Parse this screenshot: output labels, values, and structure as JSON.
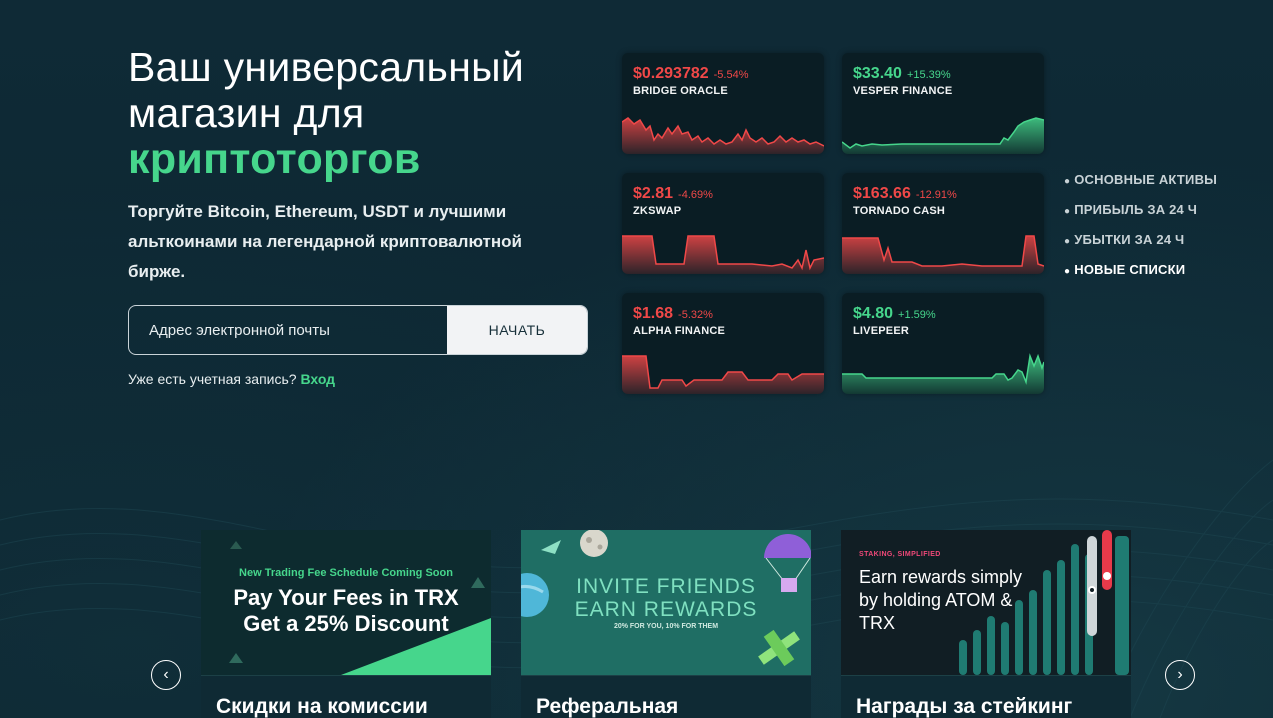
{
  "hero": {
    "title": "Ваш универсальный магазин для",
    "title_accent": "криптоторгов",
    "subtitle": "Торгуйте Bitcoin, Ethereum, USDT и лучшими альткоинами на легендарной криптовалютной бирже."
  },
  "signup": {
    "email_placeholder": "Адрес электронной почты",
    "start_label": "НАЧАТЬ",
    "login_prompt": "Уже есть учетная запись?",
    "login_link": "Вход"
  },
  "tickers": [
    {
      "price": "$0.293782",
      "change": "-5.54%",
      "name": "BRIDGE ORACLE",
      "trend": "down"
    },
    {
      "price": "$33.40",
      "change": "+15.39%",
      "name": "VESPER FINANCE",
      "trend": "up"
    },
    {
      "price": "$2.81",
      "change": "-4.69%",
      "name": "ZKSWAP",
      "trend": "down"
    },
    {
      "price": "$163.66",
      "change": "-12.91%",
      "name": "TORNADO CASH",
      "trend": "down"
    },
    {
      "price": "$1.68",
      "change": "-5.32%",
      "name": "ALPHA FINANCE",
      "trend": "down"
    },
    {
      "price": "$4.80",
      "change": "+1.59%",
      "name": "LIVEPEER",
      "trend": "up"
    }
  ],
  "filters": [
    "ОСНОВНЫЕ АКТИВЫ",
    "ПРИБЫЛЬ ЗА 24 Ч",
    "УБЫТКИ ЗА 24 Ч",
    "НОВЫЕ СПИСКИ"
  ],
  "filters_active": "НОВЫЕ СПИСКИ",
  "cards": [
    {
      "banner_sub": "New Trading Fee Schedule Coming Soon",
      "banner_line1": "Pay Your Fees in TRX",
      "banner_line2": "Get a 25% Discount",
      "caption": "Скидки на комиссии"
    },
    {
      "banner_line1": "INVITE FRIENDS",
      "banner_line2": "EARN REWARDS",
      "banner_small": "20% FOR YOU, 10% FOR THEM",
      "caption": "Реферальная"
    },
    {
      "banner_tag": "STAKING, SIMPLIFIED",
      "banner_text": "Earn rewards simply by holding ATOM & TRX",
      "caption": "Награды за стейкинг"
    }
  ],
  "carousel": {
    "prev_icon": "chevron-left-icon",
    "next_icon": "chevron-right-icon"
  },
  "colors": {
    "accent": "#46d68c",
    "negative": "#f04848",
    "background": "#0d2733"
  }
}
